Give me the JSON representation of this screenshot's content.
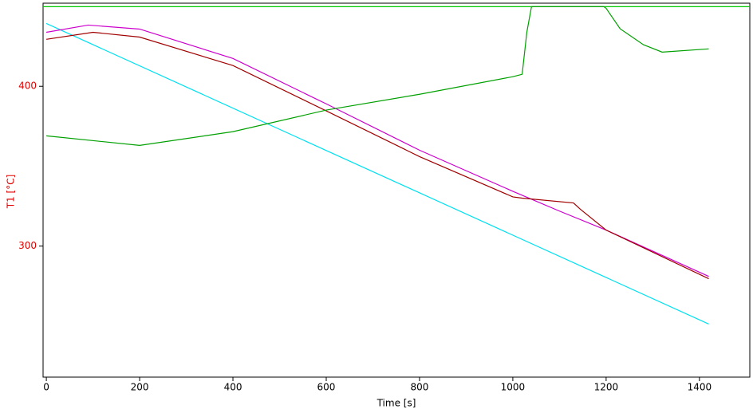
{
  "chart_data": {
    "type": "line",
    "x_label": "Time [s]",
    "y_label": "T1  [°C]",
    "xlim": [
      -7,
      1508
    ],
    "ylim": [
      218,
      452
    ],
    "xticks": [
      0,
      200,
      400,
      600,
      800,
      1000,
      1200,
      1400
    ],
    "yticks": [
      300,
      400
    ],
    "series": [
      {
        "color": "#00c800",
        "x": [
          -7,
          1508
        ],
        "values": [
          449.8,
          449.8
        ]
      },
      {
        "color": "#00e0f0",
        "x": [
          0,
          1420
        ],
        "values": [
          439.3,
          251.2
        ]
      },
      {
        "color": "#cc00cc",
        "x": [
          0,
          90,
          200,
          400,
          600,
          800,
          1000,
          1100,
          1200,
          1420
        ],
        "values": [
          433.8,
          438.3,
          435.8,
          417.4,
          389,
          360,
          334.3,
          321.9,
          310,
          281
        ]
      },
      {
        "color": "#a00000",
        "x": [
          0,
          100,
          200,
          400,
          600,
          800,
          1000,
          1020,
          1130,
          1145,
          1200,
          1420
        ],
        "values": [
          429.4,
          433.8,
          430.8,
          413,
          384.6,
          356,
          330.8,
          330,
          327,
          323,
          310,
          279.6
        ]
      },
      {
        "color": "#00a000",
        "x": [
          0,
          200,
          400,
          600,
          800,
          1000,
          1020,
          1030,
          1040,
          1195,
          1200,
          1230,
          1280,
          1320,
          1420
        ],
        "values": [
          369,
          363,
          371.6,
          385.1,
          395,
          406,
          407.5,
          433.8,
          449.8,
          449.8,
          448.8,
          436,
          426,
          421.4,
          423.4
        ]
      }
    ]
  }
}
